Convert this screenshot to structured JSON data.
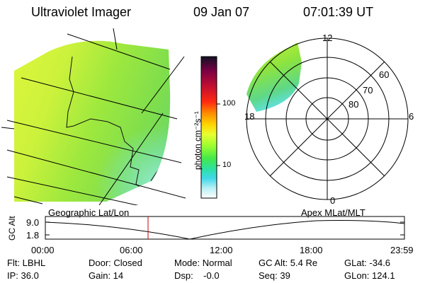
{
  "header": {
    "title": "Ultraviolet Imager",
    "date": "09 Jan 07",
    "time": "07:01:39 UT"
  },
  "colorbar": {
    "unit_label": "photon cm⁻²s⁻¹",
    "ticks": [
      "100",
      "10"
    ],
    "colors": [
      "#111122",
      "#7a0045",
      "#c8102e",
      "#ff2a10",
      "#ff8c00",
      "#ffd400",
      "#e8ff30",
      "#9cff30",
      "#44e84a",
      "#2ee0a8",
      "#40d8e8",
      "#b8f0f4",
      "#ffffff"
    ]
  },
  "polar": {
    "mlt_labels": {
      "top": "12",
      "left": "18",
      "right": "6",
      "bottom": "0"
    },
    "lat_labels": [
      "60",
      "70",
      "80"
    ]
  },
  "timeline": {
    "left_label": "Geographic Lat/Lon",
    "right_label": "Apex MLat/MLT",
    "axis_title": "GC Alt",
    "y_ticks": [
      "9.0",
      "1.8"
    ],
    "x_ticks": [
      "00:00",
      "06:00",
      "12:00",
      "18:00",
      "23:59"
    ],
    "marker_time": "07:01:39",
    "marker_color": "#cc0000"
  },
  "status": {
    "row1": {
      "filter": "Flt: LBHL",
      "door": "Door: Closed",
      "mode": "Mode: Normal",
      "gc_alt": "GC Alt: 5.4 Re",
      "glat": "GLat: -34.6"
    },
    "row2": {
      "ip": "IP: 36.0",
      "gain": "Gain: 14",
      "dsp": "Dsp:    -0.0",
      "seq": "Seq: 39",
      "glon": "GLon: 124.1"
    }
  }
}
